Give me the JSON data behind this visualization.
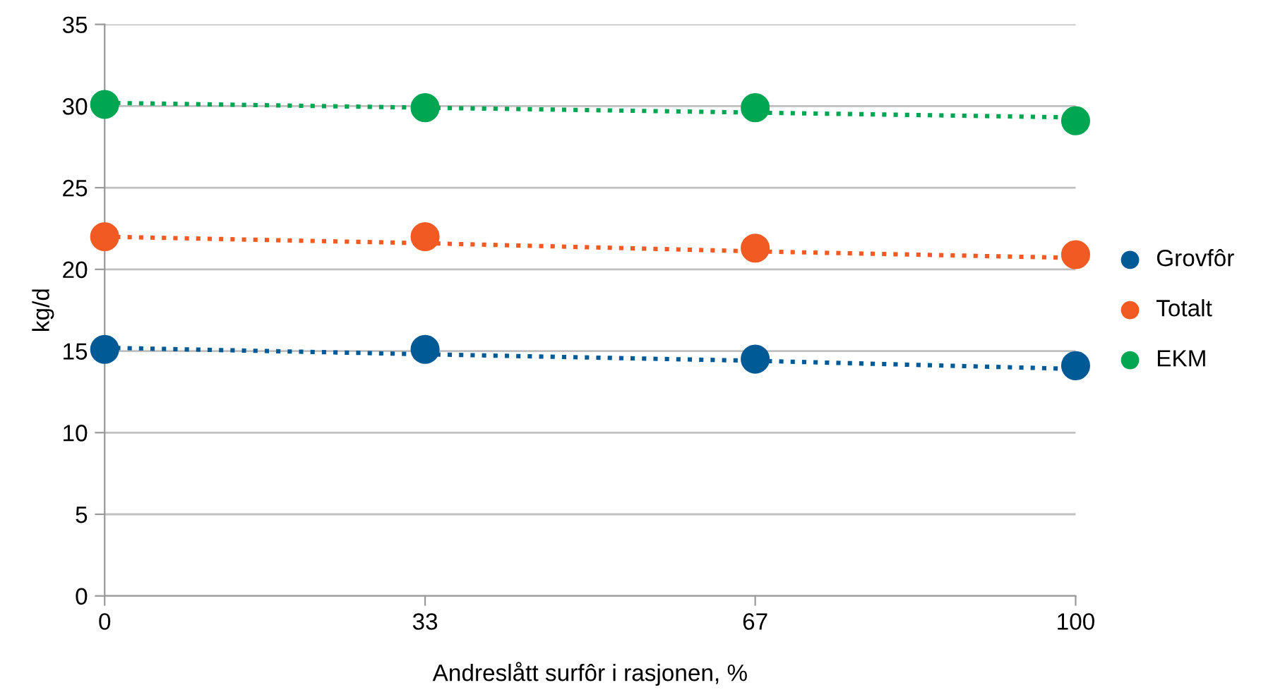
{
  "chart_data": {
    "type": "scatter",
    "xlabel": "Andreslått surfôr i rasjonen, %",
    "ylabel": "kg/d",
    "x": [
      0,
      33,
      67,
      100
    ],
    "series": [
      {
        "name": "Grovfôr",
        "color": "#005a96",
        "marker": "circle",
        "values": [
          15.1,
          15.1,
          14.5,
          14.1
        ]
      },
      {
        "name": "Totalt",
        "color": "#f15a22",
        "marker": "circle",
        "values": [
          22.0,
          22.0,
          21.3,
          20.9
        ]
      },
      {
        "name": "EKM",
        "color": "#00a651",
        "marker": "circle",
        "values": [
          30.1,
          29.9,
          29.9,
          29.1
        ]
      },
      {
        "type": "line",
        "line_style": "dotted",
        "marker": "none",
        "color": "#005a96",
        "values": [
          15.2,
          14.8,
          14.4,
          13.9
        ]
      },
      {
        "type": "line",
        "line_style": "dotted",
        "marker": "none",
        "color": "#f15a22",
        "values": [
          22.0,
          21.6,
          21.1,
          20.7
        ]
      },
      {
        "type": "line",
        "line_style": "dotted",
        "marker": "none",
        "color": "#00a651",
        "values": [
          30.2,
          29.9,
          29.6,
          29.3
        ]
      }
    ],
    "xlim": [
      0,
      100
    ],
    "xticks": [
      0,
      33,
      67,
      100
    ],
    "ylim": [
      0,
      35
    ],
    "yticks": [
      0,
      5,
      10,
      15,
      20,
      25,
      30,
      35
    ],
    "grid": "y",
    "legend": "right"
  }
}
